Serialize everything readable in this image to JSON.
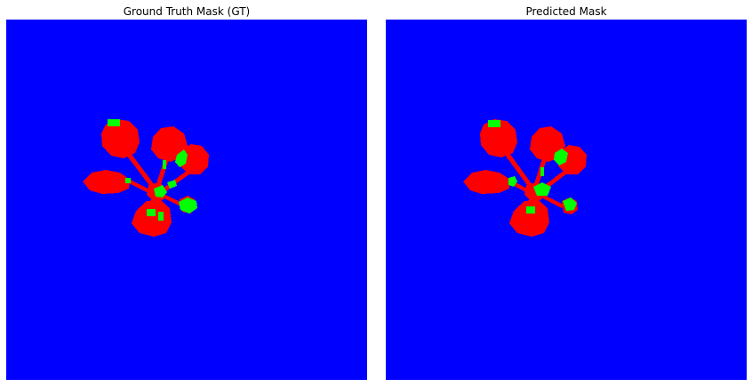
{
  "panels": [
    {
      "title": "Ground Truth Mask (GT)"
    },
    {
      "title": "Predicted Mask"
    }
  ],
  "colors": {
    "background": "#0000ff",
    "leaf": "#ff0000",
    "secondary": "#00ff00"
  }
}
